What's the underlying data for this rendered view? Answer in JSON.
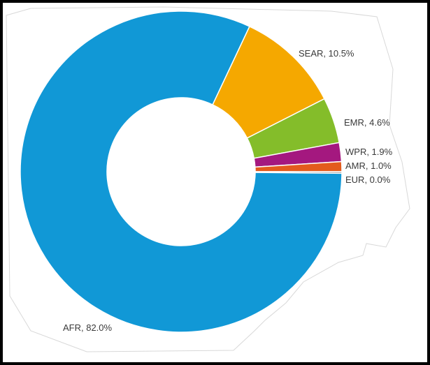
{
  "chart_data": {
    "type": "pie",
    "style": "donut",
    "title": "",
    "categories": [
      "AFR",
      "SEAR",
      "EMR",
      "WPR",
      "AMR",
      "EUR"
    ],
    "values": [
      82.0,
      10.5,
      4.6,
      1.9,
      1.0,
      0.0
    ],
    "labels": [
      "AFR, 82.0%",
      "SEAR, 10.5%",
      "EMR, 4.6%",
      "WPR, 1.9%",
      "AMR, 1.0%",
      "EUR, 0.0%"
    ],
    "colors": [
      "#1198d6",
      "#f5a800",
      "#84bd2a",
      "#a4187f",
      "#e35b1d",
      "#8a8a8a"
    ],
    "legend": "none",
    "units": "%"
  }
}
